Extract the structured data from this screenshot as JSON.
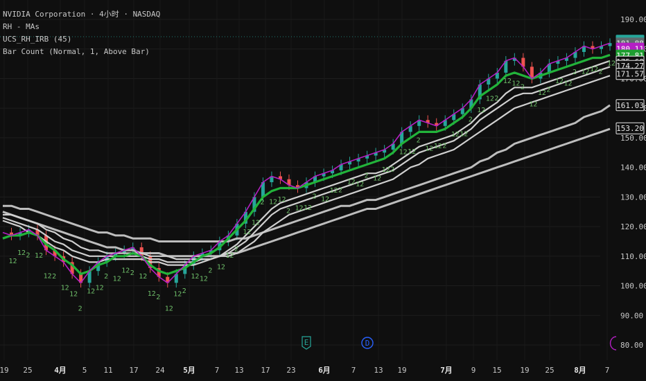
{
  "legend": {
    "symbol_line": "NVIDIA Corporation · 4小时 · NASDAQ",
    "indicator_1": "RH - MAs",
    "indicator_2": "UCS_RH_IRB (45)",
    "indicator_3": "Bar Count (Normal, 1, Above Bar)"
  },
  "colors": {
    "background": "#0f0f0f",
    "up": "#26a69a",
    "down": "#ef5350",
    "ma_fast": "#b51fc4",
    "ma_green": "#22b33a",
    "ma_slow": "#d0d0d0",
    "count_label": "#6fbf6a"
  },
  "chart_data": {
    "type": "line",
    "ylim": [
      78,
      194
    ],
    "y_ticks": [
      190.0,
      180.0,
      170.0,
      160.0,
      150.0,
      140.0,
      130.0,
      120.0,
      110.0,
      100.0,
      90.0,
      80.0
    ],
    "x_ticks": [
      "19",
      "25",
      "4月",
      "5",
      "11",
      "17",
      "24",
      "5月",
      "7",
      "13",
      "17",
      "23",
      "6月",
      "7",
      "13",
      "19",
      "7月",
      "9",
      "15",
      "19",
      "25",
      "8月",
      "7"
    ],
    "month_ticks": [
      "4月",
      "5月",
      "6月",
      "7月",
      "8月"
    ],
    "price_tags": [
      {
        "label": "182.81",
        "kind": "last"
      },
      {
        "label": "181.88",
        "kind": "ma-gray"
      },
      {
        "label": "180.11",
        "kind": "ma-purple"
      },
      {
        "label": "177.81",
        "kind": "ma-green"
      },
      {
        "label": "175.68",
        "kind": "ma-white"
      },
      {
        "label": "174.27",
        "kind": "ma-white"
      },
      {
        "label": "171.57",
        "kind": "ma-white"
      },
      {
        "label": "161.03",
        "kind": "ma-white"
      },
      {
        "label": "153.20",
        "kind": "ma-white"
      }
    ],
    "event_markers": [
      "E",
      "D"
    ],
    "series": [
      {
        "values": [
          118,
          117,
          118,
          119,
          117,
          112,
          110,
          108,
          104,
          101,
          105,
          108,
          110,
          111,
          112,
          113,
          110,
          106,
          103,
          101,
          104,
          107,
          110,
          111,
          112,
          115,
          117,
          121,
          125,
          130,
          135,
          137,
          136,
          134,
          133,
          135,
          137,
          138,
          139,
          141,
          142,
          143,
          144,
          145,
          146,
          148,
          152,
          154,
          156,
          155,
          154,
          156,
          158,
          160,
          163,
          168,
          170,
          172,
          176,
          177,
          174,
          170,
          172,
          175,
          176,
          177,
          179,
          181,
          180,
          181,
          182
        ]
      },
      {
        "values": [
          116,
          117,
          117,
          118,
          117,
          114,
          112,
          109,
          107,
          104,
          105,
          107,
          108,
          110,
          110,
          111,
          110,
          107,
          105,
          104,
          105,
          106,
          108,
          110,
          111,
          113,
          116,
          119,
          122,
          126,
          130,
          132,
          133,
          133,
          133,
          134,
          135,
          136,
          137,
          138,
          139,
          140,
          141,
          142,
          143,
          145,
          148,
          150,
          152,
          152,
          152,
          153,
          155,
          157,
          160,
          164,
          166,
          168,
          171,
          172,
          171,
          170,
          171,
          172,
          173,
          174,
          175,
          176,
          177,
          177,
          178
        ]
      },
      {
        "values": [
          122,
          121,
          120,
          118,
          117,
          115,
          113,
          112,
          110,
          109,
          108,
          108,
          109,
          109,
          109,
          109,
          109,
          108,
          108,
          107,
          107,
          107,
          107,
          108,
          109,
          110,
          112,
          114,
          117,
          120,
          123,
          126,
          128,
          129,
          130,
          131,
          132,
          133,
          134,
          135,
          136,
          137,
          138,
          138,
          139,
          141,
          143,
          145,
          147,
          148,
          149,
          150,
          151,
          153,
          155,
          158,
          160,
          162,
          165,
          167,
          167,
          167,
          168,
          169,
          170,
          171,
          172,
          173,
          174,
          175,
          176
        ]
      },
      {
        "values": [
          123,
          122,
          121,
          120,
          119,
          117,
          115,
          114,
          112,
          111,
          110,
          110,
          110,
          110,
          110,
          110,
          110,
          109,
          109,
          108,
          108,
          108,
          108,
          109,
          109,
          110,
          111,
          113,
          115,
          118,
          121,
          124,
          126,
          127,
          128,
          129,
          130,
          131,
          132,
          133,
          134,
          135,
          136,
          137,
          138,
          139,
          141,
          143,
          145,
          146,
          147,
          148,
          149,
          151,
          153,
          156,
          158,
          160,
          162,
          164,
          165,
          165,
          166,
          167,
          168,
          169,
          170,
          171,
          172,
          173,
          174
        ]
      },
      {
        "values": [
          124,
          124,
          123,
          122,
          121,
          119,
          118,
          116,
          115,
          113,
          112,
          112,
          111,
          111,
          111,
          111,
          111,
          110,
          110,
          110,
          109,
          109,
          109,
          109,
          109,
          110,
          110,
          111,
          113,
          115,
          118,
          120,
          122,
          124,
          125,
          126,
          127,
          128,
          129,
          130,
          131,
          132,
          133,
          134,
          135,
          136,
          138,
          140,
          141,
          143,
          144,
          145,
          146,
          148,
          150,
          152,
          154,
          156,
          158,
          160,
          161,
          162,
          163,
          164,
          165,
          166,
          167,
          168,
          169,
          170,
          171
        ]
      },
      {
        "values": [
          127,
          127,
          126,
          126,
          125,
          124,
          123,
          122,
          121,
          120,
          119,
          118,
          118,
          117,
          117,
          116,
          116,
          116,
          115,
          115,
          115,
          115,
          115,
          115,
          115,
          115,
          115,
          116,
          116,
          117,
          118,
          119,
          120,
          121,
          122,
          123,
          124,
          125,
          126,
          127,
          127,
          128,
          129,
          129,
          130,
          131,
          132,
          133,
          134,
          135,
          136,
          137,
          138,
          139,
          140,
          142,
          143,
          145,
          146,
          148,
          149,
          150,
          151,
          152,
          153,
          154,
          155,
          157,
          158,
          159,
          161
        ]
      },
      {
        "values": [
          125,
          124,
          123,
          122,
          121,
          120,
          119,
          118,
          117,
          116,
          115,
          114,
          113,
          113,
          112,
          112,
          111,
          111,
          111,
          110,
          110,
          110,
          110,
          110,
          110,
          110,
          111,
          111,
          112,
          113,
          114,
          115,
          116,
          117,
          118,
          119,
          120,
          121,
          122,
          123,
          124,
          125,
          126,
          126,
          127,
          128,
          129,
          130,
          131,
          132,
          133,
          134,
          135,
          136,
          137,
          138,
          139,
          140,
          141,
          142,
          143,
          144,
          145,
          146,
          147,
          148,
          149,
          150,
          151,
          152,
          153
        ]
      }
    ]
  }
}
